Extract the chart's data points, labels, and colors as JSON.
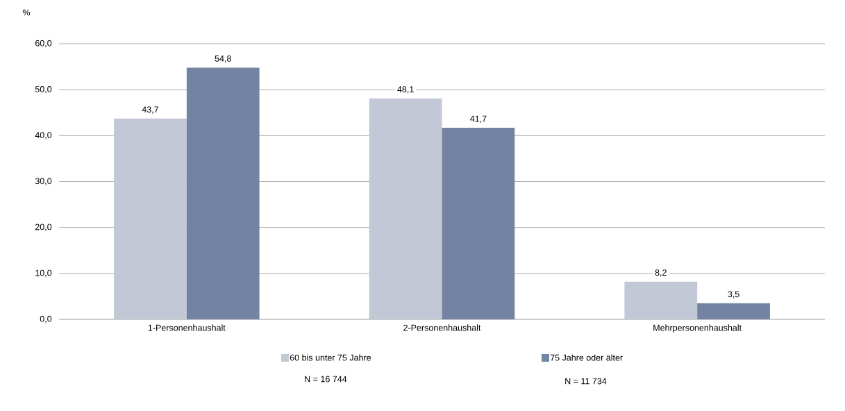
{
  "chart_data": {
    "type": "bar",
    "ylabel": "%",
    "categories": [
      "1-Personenhaushalt",
      "2-Personenhaushalt",
      "Mehrpersonenhaushalt"
    ],
    "series": [
      {
        "name": "60 bis unter 75 Jahre",
        "color": "#c3c8d6",
        "values": [
          43.7,
          48.1,
          8.2
        ],
        "value_labels": [
          "43,7",
          "48,1",
          "8,2"
        ]
      },
      {
        "name": "75 Jahre oder älter",
        "color": "#7384a3",
        "values": [
          54.8,
          41.7,
          3.5
        ],
        "value_labels": [
          "54,8",
          "41,7",
          "3,5"
        ]
      }
    ],
    "ylim": [
      0,
      60
    ],
    "yticks": [
      {
        "value": 0,
        "label": "0,0"
      },
      {
        "value": 10,
        "label": "10,0"
      },
      {
        "value": 20,
        "label": "20,0"
      },
      {
        "value": 30,
        "label": "30,0"
      },
      {
        "value": 40,
        "label": "40,0"
      },
      {
        "value": 50,
        "label": "50,0"
      },
      {
        "value": 60,
        "label": "60,0"
      }
    ],
    "grid": "y",
    "legend": "bottom",
    "annotations": [
      "N = 16 744",
      "N = 11 734"
    ]
  }
}
